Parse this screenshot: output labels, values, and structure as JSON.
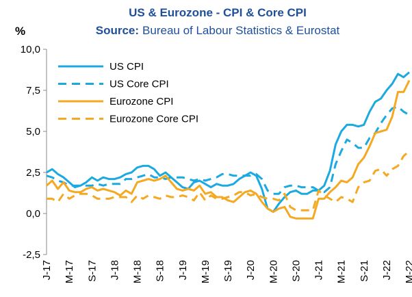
{
  "chart_data": {
    "type": "line",
    "title": "US & Eurozone - CPI & Core CPI",
    "subtitle_label": "Source:",
    "subtitle": "Bureau of Labour Statistics & Eurostat",
    "y_label": "%",
    "categories": [
      "J-17",
      null,
      null,
      null,
      "M-17",
      null,
      null,
      null,
      "S-17",
      null,
      null,
      null,
      "J-18",
      null,
      null,
      null,
      "M-18",
      null,
      null,
      null,
      "S-18",
      null,
      null,
      null,
      "J-19",
      null,
      null,
      null,
      "M-19",
      null,
      null,
      null,
      "S-19",
      null,
      null,
      null,
      "J-20",
      null,
      null,
      null,
      "M-20",
      null,
      null,
      null,
      "S-20",
      null,
      null,
      null,
      "J-21",
      null,
      null,
      null,
      "M-21",
      null,
      null,
      null,
      "S-21",
      null,
      null,
      null,
      "J-22",
      null,
      null,
      null,
      "M-22"
    ],
    "ylim": [
      -2.5,
      10
    ],
    "yticks": [
      {
        "value": -2.5,
        "label": "-2,5"
      },
      {
        "value": 0,
        "label": "0,0"
      },
      {
        "value": 2.5,
        "label": "2,5"
      },
      {
        "value": 5,
        "label": "5,0"
      },
      {
        "value": 7.5,
        "label": "7,5"
      },
      {
        "value": 10,
        "label": "10,0"
      }
    ],
    "grid": false,
    "legend": "top-left",
    "series": [
      {
        "name": "US CPI",
        "color": "#1ba9e1",
        "dash": false,
        "values": [
          2.5,
          2.7,
          2.4,
          2.2,
          1.9,
          1.6,
          1.7,
          1.9,
          2.2,
          2.0,
          2.2,
          2.1,
          2.1,
          2.2,
          2.4,
          2.5,
          2.8,
          2.9,
          2.9,
          2.7,
          2.3,
          2.5,
          2.2,
          1.9,
          1.6,
          1.5,
          1.9,
          2.0,
          1.8,
          1.6,
          1.8,
          1.7,
          1.7,
          1.8,
          2.1,
          2.3,
          2.5,
          2.3,
          1.5,
          0.3,
          0.1,
          0.6,
          1.0,
          1.3,
          1.4,
          1.2,
          1.2,
          1.4,
          1.4,
          1.7,
          2.6,
          4.2,
          5.0,
          5.4,
          5.4,
          5.3,
          5.4,
          6.2,
          6.8,
          7.0,
          7.5,
          7.9,
          8.5,
          8.3,
          8.6
        ]
      },
      {
        "name": "US Core CPI",
        "color": "#1ba9e1",
        "dash": true,
        "values": [
          2.3,
          2.2,
          2.0,
          1.9,
          1.7,
          1.7,
          1.7,
          1.7,
          1.7,
          1.8,
          1.7,
          1.8,
          1.8,
          1.8,
          2.1,
          2.1,
          2.2,
          2.3,
          2.4,
          2.2,
          2.2,
          2.1,
          2.2,
          2.2,
          2.2,
          2.1,
          2.0,
          2.1,
          2.0,
          2.1,
          2.2,
          2.4,
          2.4,
          2.3,
          2.3,
          2.3,
          2.3,
          2.4,
          2.1,
          1.4,
          1.2,
          1.2,
          1.6,
          1.7,
          1.7,
          1.6,
          1.6,
          1.6,
          1.4,
          1.3,
          1.6,
          3.0,
          3.8,
          4.5,
          4.3,
          4.0,
          4.0,
          4.6,
          4.9,
          5.5,
          6.0,
          6.4,
          6.5,
          6.2,
          6.0
        ]
      },
      {
        "name": "Eurozone CPI",
        "color": "#f5a822",
        "dash": false,
        "values": [
          1.7,
          2.0,
          1.5,
          1.9,
          1.4,
          1.3,
          1.3,
          1.5,
          1.6,
          1.4,
          1.5,
          1.4,
          1.3,
          1.1,
          1.4,
          1.2,
          1.9,
          2.0,
          2.1,
          2.0,
          2.1,
          2.3,
          1.9,
          1.5,
          1.4,
          1.5,
          1.4,
          1.7,
          1.2,
          1.3,
          1.0,
          1.0,
          0.8,
          0.7,
          1.0,
          1.3,
          1.4,
          1.2,
          0.7,
          0.3,
          0.1,
          0.3,
          0.4,
          -0.2,
          -0.3,
          -0.3,
          -0.3,
          -0.3,
          0.9,
          0.9,
          1.3,
          1.6,
          2.0,
          1.9,
          2.2,
          3.0,
          3.4,
          4.1,
          4.9,
          5.0,
          5.1,
          5.9,
          7.4,
          7.4,
          8.1
        ]
      },
      {
        "name": "Eurozone Core CPI",
        "color": "#f5a822",
        "dash": true,
        "values": [
          0.9,
          0.9,
          0.7,
          1.2,
          0.9,
          1.1,
          1.2,
          1.2,
          1.1,
          0.9,
          0.9,
          0.9,
          1.0,
          1.0,
          1.0,
          0.7,
          1.1,
          0.9,
          1.1,
          1.0,
          0.9,
          1.1,
          1.0,
          1.0,
          1.1,
          1.0,
          0.8,
          1.3,
          0.8,
          1.1,
          0.9,
          0.9,
          1.0,
          1.1,
          1.3,
          1.3,
          1.1,
          1.2,
          1.0,
          0.9,
          0.9,
          0.8,
          1.2,
          0.4,
          0.2,
          0.2,
          0.2,
          0.2,
          1.4,
          1.1,
          0.9,
          0.7,
          1.0,
          0.9,
          0.7,
          1.6,
          1.9,
          2.0,
          2.6,
          2.7,
          2.3,
          2.7,
          2.9,
          3.5,
          3.8
        ]
      }
    ]
  }
}
